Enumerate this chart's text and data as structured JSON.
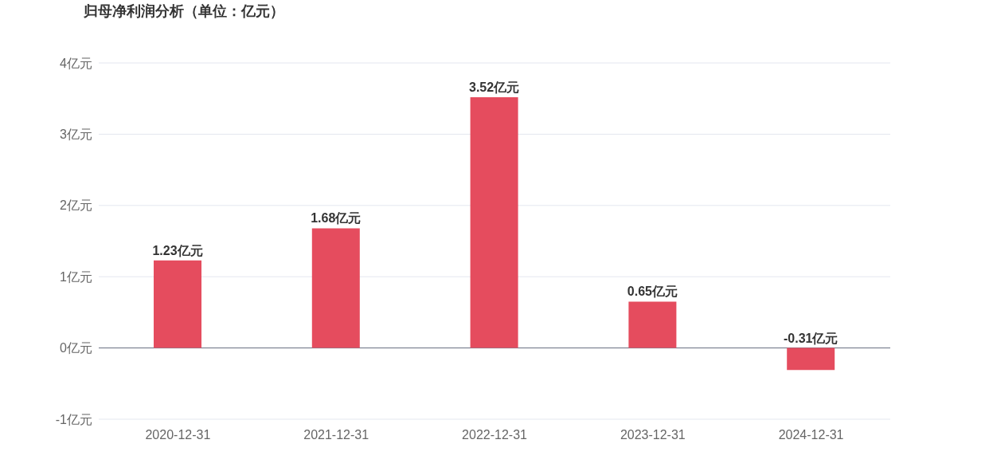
{
  "chart_data": {
    "type": "bar",
    "title": "归母净利润分析（单位：亿元）",
    "categories": [
      "2020-12-31",
      "2021-12-31",
      "2022-12-31",
      "2023-12-31",
      "2024-12-31"
    ],
    "values": [
      1.23,
      1.68,
      3.52,
      0.65,
      -0.31
    ],
    "value_labels": [
      "1.23亿元",
      "1.68亿元",
      "3.52亿元",
      "0.65亿元",
      "-0.31亿元"
    ],
    "color": "#e54c5e",
    "ylim": [
      -1,
      4
    ],
    "yticks": [
      {
        "value": -1,
        "label": "-1亿元"
      },
      {
        "value": 0,
        "label": "0亿元"
      },
      {
        "value": 1,
        "label": "1亿元"
      },
      {
        "value": 2,
        "label": "2亿元"
      },
      {
        "value": 3,
        "label": "3亿元"
      },
      {
        "value": 4,
        "label": "4亿元"
      }
    ],
    "grid": "y"
  }
}
